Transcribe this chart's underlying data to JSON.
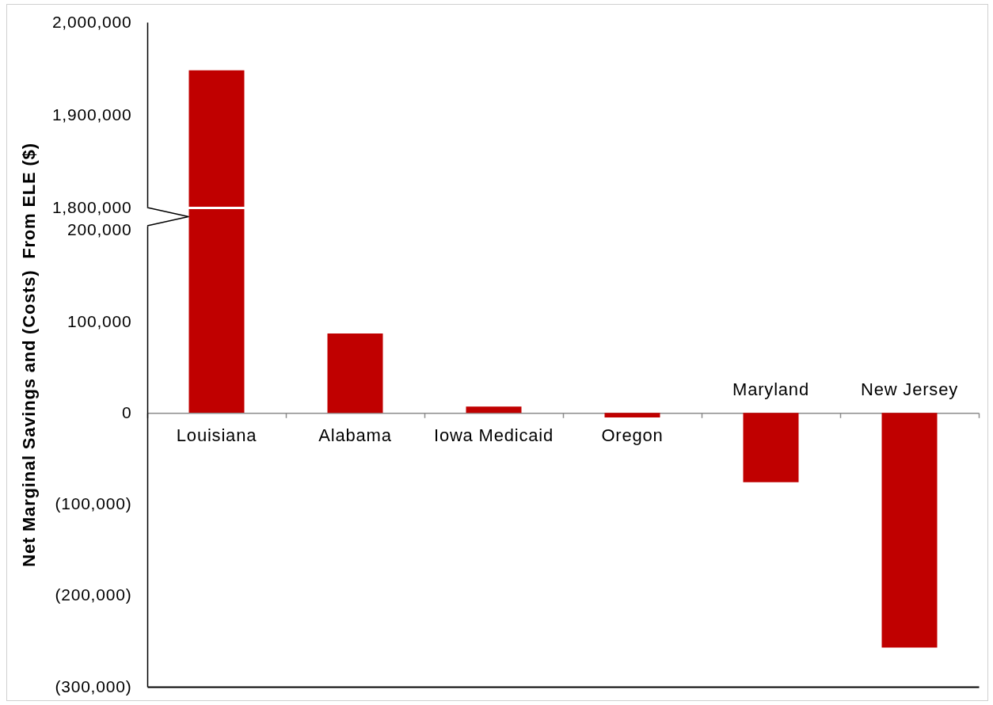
{
  "chart_data": [
    {
      "type": "bar",
      "categories": [
        null,
        null,
        null,
        null,
        null,
        null
      ],
      "values": [
        1948000,
        null,
        null,
        null,
        null,
        null
      ],
      "color": "#c00000",
      "ylim": [
        1800000,
        2000000
      ],
      "yticks": [
        {
          "value": 1800000,
          "label": "1,800,000"
        },
        {
          "value": 1900000,
          "label": "1,900,000"
        },
        {
          "value": 2000000,
          "label": "2,000,000"
        }
      ]
    },
    {
      "type": "bar",
      "categories": [
        "Louisiana",
        "Alabama",
        "Iowa Medicaid",
        "Oregon",
        "Maryland",
        "New Jersey"
      ],
      "values": [
        null,
        87000,
        7000,
        -5000,
        -76000,
        -257000
      ],
      "color": "#c00000",
      "ylim": [
        -300000,
        205000
      ],
      "yticks": [
        {
          "value": -300000,
          "label": "(300,000)"
        },
        {
          "value": -200000,
          "label": "(200,000)"
        },
        {
          "value": -100000,
          "label": "(100,000)"
        },
        0,
        {
          "value": 100000,
          "label": "100,000"
        },
        {
          "value": 200000,
          "label": "200,000"
        }
      ],
      "ylabel": "Net Marginal Savings and (Costs)  From ELE ($)"
    }
  ]
}
